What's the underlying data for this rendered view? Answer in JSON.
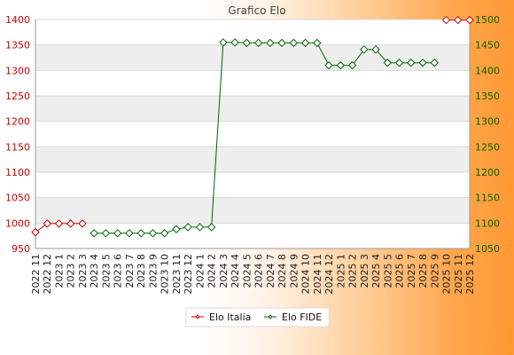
{
  "chart_data": {
    "type": "line",
    "title": "Grafico Elo",
    "categories": [
      "2022 11",
      "2022 12",
      "2023 1",
      "2023 2",
      "2023 3",
      "2023 4",
      "2023 5",
      "2023 6",
      "2023 7",
      "2023 8",
      "2023 9",
      "2023 10",
      "2023 11",
      "2023 12",
      "2024 1",
      "2024 2",
      "2024 3",
      "2024 4",
      "2024 5",
      "2024 6",
      "2024 7",
      "2024 8",
      "2024 9",
      "2024 10",
      "2024 11",
      "2024 12",
      "2025 1",
      "2025 2",
      "2025 3",
      "2025 4",
      "2025 5",
      "2025 6",
      "2025 7",
      "2025 8",
      "2025 9",
      "2025 10",
      "2025 11",
      "2025 12"
    ],
    "y_left": {
      "ylim": [
        950,
        1400
      ],
      "ticks": [
        950,
        1000,
        1050,
        1100,
        1150,
        1200,
        1250,
        1300,
        1350,
        1400
      ],
      "color": "#cc0000"
    },
    "y_right": {
      "ylim": [
        1050,
        1500
      ],
      "ticks": [
        1050,
        1100,
        1150,
        1200,
        1250,
        1300,
        1350,
        1400,
        1450,
        1500
      ],
      "color": "#006600"
    },
    "grid": "horizontal bands",
    "legend_position": "bottom-center",
    "series": [
      {
        "name": "Elo Italia",
        "axis": "left",
        "color": "#cc0000",
        "values": [
          982,
          999,
          999,
          999,
          999,
          null,
          null,
          null,
          null,
          null,
          null,
          null,
          null,
          null,
          null,
          null,
          null,
          null,
          null,
          null,
          null,
          null,
          null,
          null,
          null,
          null,
          null,
          null,
          null,
          null,
          null,
          null,
          null,
          null,
          null,
          1399,
          1399,
          1399
        ]
      },
      {
        "name": "Elo FIDE",
        "axis": "right",
        "color": "#006600",
        "values": [
          null,
          null,
          null,
          null,
          null,
          1080,
          1080,
          1080,
          1080,
          1080,
          1080,
          1080,
          1088,
          1092,
          1092,
          1092,
          1455,
          1455,
          1454,
          1454,
          1454,
          1454,
          1454,
          1454,
          1454,
          1410,
          1410,
          1410,
          1441,
          1441,
          1415,
          1415,
          1415,
          1415,
          1415,
          null,
          null,
          null
        ]
      }
    ]
  }
}
